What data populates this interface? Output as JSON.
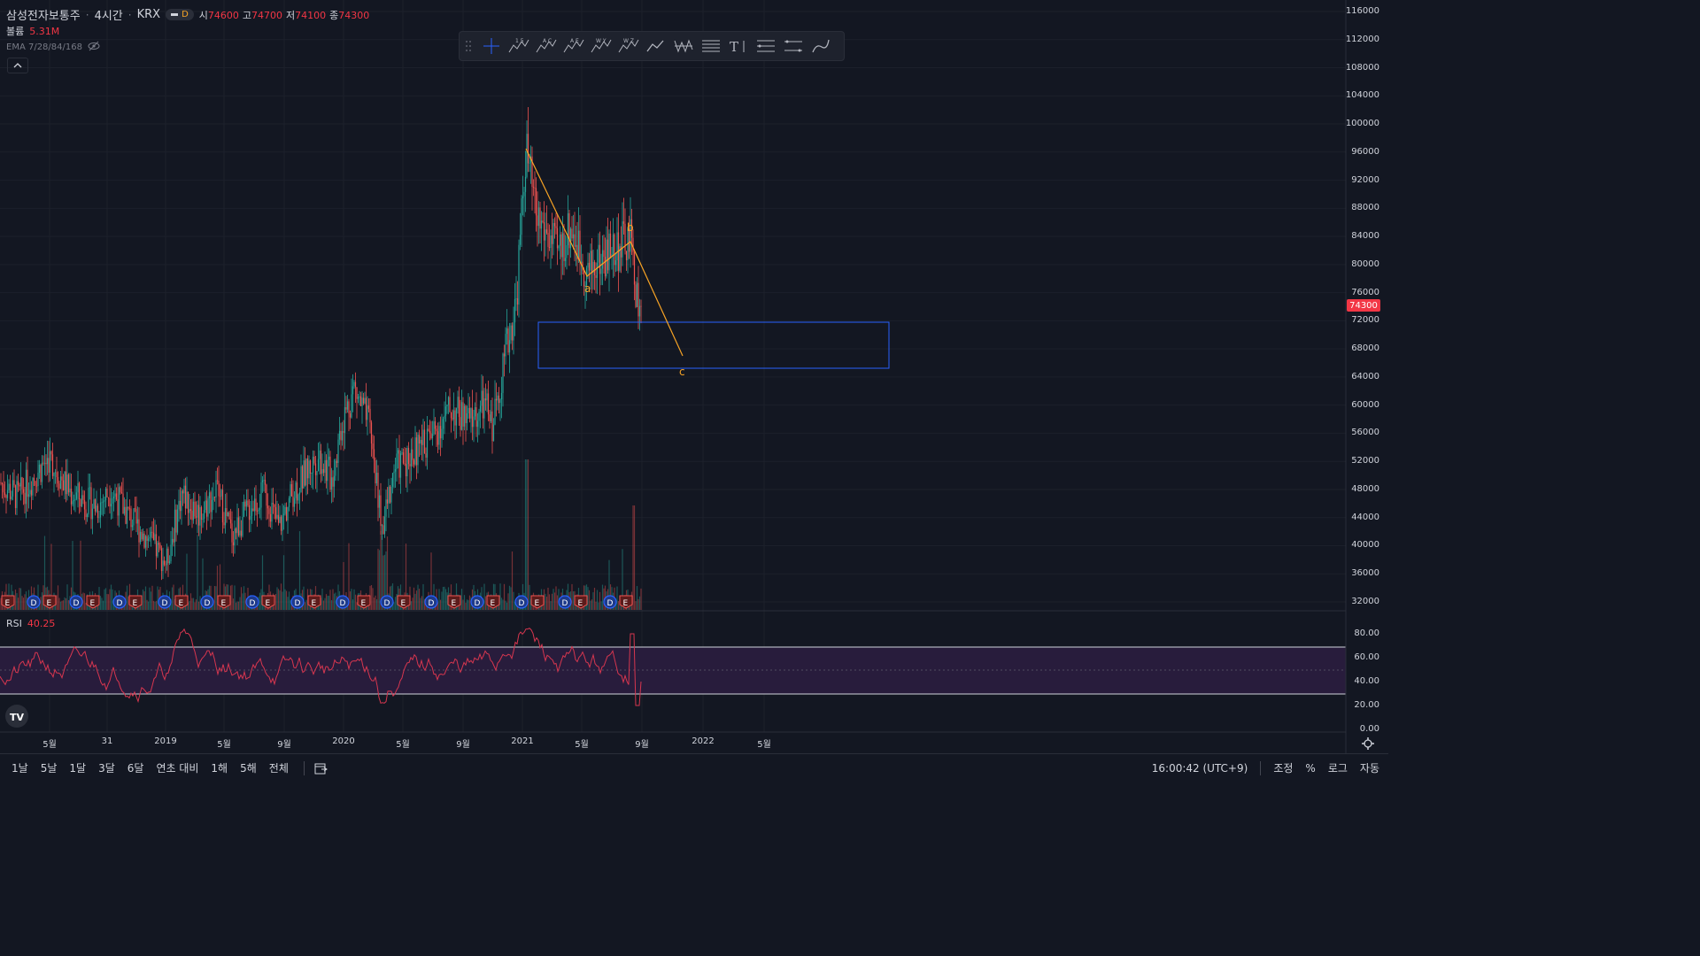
{
  "symbol": {
    "name": "삼성전자보통주",
    "interval": "4시간",
    "exchange": "KRX",
    "badge": "D",
    "ohlc": [
      {
        "label": "시",
        "value": "74600"
      },
      {
        "label": "고",
        "value": "74700"
      },
      {
        "label": "저",
        "value": "74100"
      },
      {
        "label": "종",
        "value": "74300"
      }
    ]
  },
  "volume": {
    "label": "볼륨",
    "value": "5.31M"
  },
  "ema": {
    "label": "EMA 7/28/84/168"
  },
  "rsi": {
    "label": "RSI",
    "value": "40.25"
  },
  "toolbar_icons": [
    "drag-handle-icon",
    "crosshair-icon",
    "elliott-impulse-icon",
    "elliott-correction-icon",
    "elliott-triangle-icon",
    "elliott-double-combo-icon",
    "elliott-triple-combo-icon",
    "path-icon",
    "pattern-icon",
    "lines-icon",
    "text-icon",
    "fib-channel-icon",
    "parallel-channel-icon",
    "brush-icon"
  ],
  "wave_labels": {
    "a": "a",
    "b": "b",
    "c": "c"
  },
  "price_axis": {
    "ticks": [
      "116000",
      "112000",
      "108000",
      "104000",
      "100000",
      "96000",
      "92000",
      "88000",
      "84000",
      "80000",
      "76000",
      "72000",
      "68000",
      "64000",
      "60000",
      "56000",
      "52000",
      "48000",
      "44000",
      "40000",
      "36000",
      "32000"
    ],
    "current_price": "74300"
  },
  "rsi_axis": {
    "ticks": [
      "80.00",
      "60.00",
      "40.00",
      "20.00",
      "0.00"
    ]
  },
  "time_axis": {
    "labels": [
      "5월",
      "31",
      "2019",
      "5월",
      "9월",
      "2020",
      "5월",
      "9월",
      "2021",
      "5월",
      "9월",
      "2022",
      "5월"
    ]
  },
  "bottom_bar": {
    "ranges": [
      "1날",
      "5날",
      "1달",
      "3달",
      "6달",
      "연초 대비",
      "1해",
      "5해",
      "전체"
    ],
    "time": "16:00:42 (UTC+9)",
    "controls": [
      "조정",
      "%",
      "로그",
      "자동"
    ]
  },
  "colors": {
    "background": "#131722",
    "up": "#26a69a",
    "down": "#ef5350",
    "wave": "#f7a325",
    "box": "#2962ff",
    "rsi_line": "#d6364f",
    "rsi_band": "#2b1d3f",
    "price_tag": "#f23645"
  },
  "chart_data": {
    "type": "candlestick",
    "price_range": [
      32000,
      116000
    ],
    "rsi_range": [
      0,
      100
    ],
    "rsi_bands": [
      30,
      70
    ],
    "wave_path": [
      {
        "label": "",
        "price": 96800
      },
      {
        "label": "a",
        "price": 78800
      },
      {
        "label": "b",
        "price": 83300
      },
      {
        "label": "c",
        "price": 67000
      }
    ],
    "target_zone": {
      "price_top": 72000,
      "price_bottom": 65300
    },
    "last_close": 74300
  }
}
